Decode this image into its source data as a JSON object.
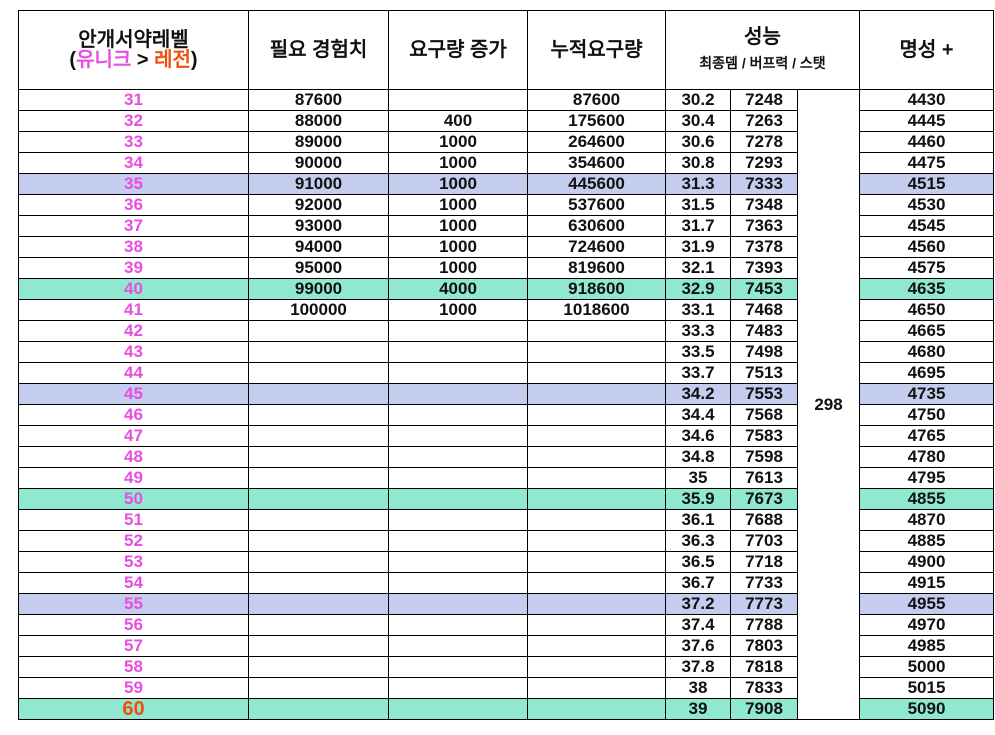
{
  "header": {
    "level_title": "안개서약레벨",
    "level_sub_open": "(",
    "level_sub_unique": "유니크",
    "level_sub_arrow": " > ",
    "level_sub_legend": "레전",
    "level_sub_close": ")",
    "exp": "필요 경험치",
    "increase": "요구량 증가",
    "cumulative": "누적요구량",
    "performance": "성능",
    "performance_sub": "최종뎀 / 버프력 / 스탯",
    "fame": "명성 +"
  },
  "stat_merged": "298",
  "colors": {
    "blue": "#c5cdef",
    "green": "#8fe8cf",
    "level": "#e84ee0",
    "level_max": "#f0500c"
  },
  "rows": [
    {
      "level": "31",
      "exp": "87600",
      "inc": "",
      "cum": "87600",
      "dmg": "30.2",
      "buff": "7248",
      "fame": "4430",
      "hl": ""
    },
    {
      "level": "32",
      "exp": "88000",
      "inc": "400",
      "cum": "175600",
      "dmg": "30.4",
      "buff": "7263",
      "fame": "4445",
      "hl": ""
    },
    {
      "level": "33",
      "exp": "89000",
      "inc": "1000",
      "cum": "264600",
      "dmg": "30.6",
      "buff": "7278",
      "fame": "4460",
      "hl": ""
    },
    {
      "level": "34",
      "exp": "90000",
      "inc": "1000",
      "cum": "354600",
      "dmg": "30.8",
      "buff": "7293",
      "fame": "4475",
      "hl": ""
    },
    {
      "level": "35",
      "exp": "91000",
      "inc": "1000",
      "cum": "445600",
      "dmg": "31.3",
      "buff": "7333",
      "fame": "4515",
      "hl": "blue"
    },
    {
      "level": "36",
      "exp": "92000",
      "inc": "1000",
      "cum": "537600",
      "dmg": "31.5",
      "buff": "7348",
      "fame": "4530",
      "hl": ""
    },
    {
      "level": "37",
      "exp": "93000",
      "inc": "1000",
      "cum": "630600",
      "dmg": "31.7",
      "buff": "7363",
      "fame": "4545",
      "hl": ""
    },
    {
      "level": "38",
      "exp": "94000",
      "inc": "1000",
      "cum": "724600",
      "dmg": "31.9",
      "buff": "7378",
      "fame": "4560",
      "hl": ""
    },
    {
      "level": "39",
      "exp": "95000",
      "inc": "1000",
      "cum": "819600",
      "dmg": "32.1",
      "buff": "7393",
      "fame": "4575",
      "hl": ""
    },
    {
      "level": "40",
      "exp": "99000",
      "inc": "4000",
      "cum": "918600",
      "dmg": "32.9",
      "buff": "7453",
      "fame": "4635",
      "hl": "green"
    },
    {
      "level": "41",
      "exp": "100000",
      "inc": "1000",
      "cum": "1018600",
      "dmg": "33.1",
      "buff": "7468",
      "fame": "4650",
      "hl": ""
    },
    {
      "level": "42",
      "exp": "",
      "inc": "",
      "cum": "",
      "dmg": "33.3",
      "buff": "7483",
      "fame": "4665",
      "hl": ""
    },
    {
      "level": "43",
      "exp": "",
      "inc": "",
      "cum": "",
      "dmg": "33.5",
      "buff": "7498",
      "fame": "4680",
      "hl": ""
    },
    {
      "level": "44",
      "exp": "",
      "inc": "",
      "cum": "",
      "dmg": "33.7",
      "buff": "7513",
      "fame": "4695",
      "hl": ""
    },
    {
      "level": "45",
      "exp": "",
      "inc": "",
      "cum": "",
      "dmg": "34.2",
      "buff": "7553",
      "fame": "4735",
      "hl": "blue"
    },
    {
      "level": "46",
      "exp": "",
      "inc": "",
      "cum": "",
      "dmg": "34.4",
      "buff": "7568",
      "fame": "4750",
      "hl": ""
    },
    {
      "level": "47",
      "exp": "",
      "inc": "",
      "cum": "",
      "dmg": "34.6",
      "buff": "7583",
      "fame": "4765",
      "hl": ""
    },
    {
      "level": "48",
      "exp": "",
      "inc": "",
      "cum": "",
      "dmg": "34.8",
      "buff": "7598",
      "fame": "4780",
      "hl": ""
    },
    {
      "level": "49",
      "exp": "",
      "inc": "",
      "cum": "",
      "dmg": "35",
      "buff": "7613",
      "fame": "4795",
      "hl": ""
    },
    {
      "level": "50",
      "exp": "",
      "inc": "",
      "cum": "",
      "dmg": "35.9",
      "buff": "7673",
      "fame": "4855",
      "hl": "green"
    },
    {
      "level": "51",
      "exp": "",
      "inc": "",
      "cum": "",
      "dmg": "36.1",
      "buff": "7688",
      "fame": "4870",
      "hl": ""
    },
    {
      "level": "52",
      "exp": "",
      "inc": "",
      "cum": "",
      "dmg": "36.3",
      "buff": "7703",
      "fame": "4885",
      "hl": ""
    },
    {
      "level": "53",
      "exp": "",
      "inc": "",
      "cum": "",
      "dmg": "36.5",
      "buff": "7718",
      "fame": "4900",
      "hl": ""
    },
    {
      "level": "54",
      "exp": "",
      "inc": "",
      "cum": "",
      "dmg": "36.7",
      "buff": "7733",
      "fame": "4915",
      "hl": ""
    },
    {
      "level": "55",
      "exp": "",
      "inc": "",
      "cum": "",
      "dmg": "37.2",
      "buff": "7773",
      "fame": "4955",
      "hl": "blue"
    },
    {
      "level": "56",
      "exp": "",
      "inc": "",
      "cum": "",
      "dmg": "37.4",
      "buff": "7788",
      "fame": "4970",
      "hl": ""
    },
    {
      "level": "57",
      "exp": "",
      "inc": "",
      "cum": "",
      "dmg": "37.6",
      "buff": "7803",
      "fame": "4985",
      "hl": ""
    },
    {
      "level": "58",
      "exp": "",
      "inc": "",
      "cum": "",
      "dmg": "37.8",
      "buff": "7818",
      "fame": "5000",
      "hl": ""
    },
    {
      "level": "59",
      "exp": "",
      "inc": "",
      "cum": "",
      "dmg": "38",
      "buff": "7833",
      "fame": "5015",
      "hl": ""
    },
    {
      "level": "60",
      "exp": "",
      "inc": "",
      "cum": "",
      "dmg": "39",
      "buff": "7908",
      "fame": "5090",
      "hl": "green"
    }
  ]
}
